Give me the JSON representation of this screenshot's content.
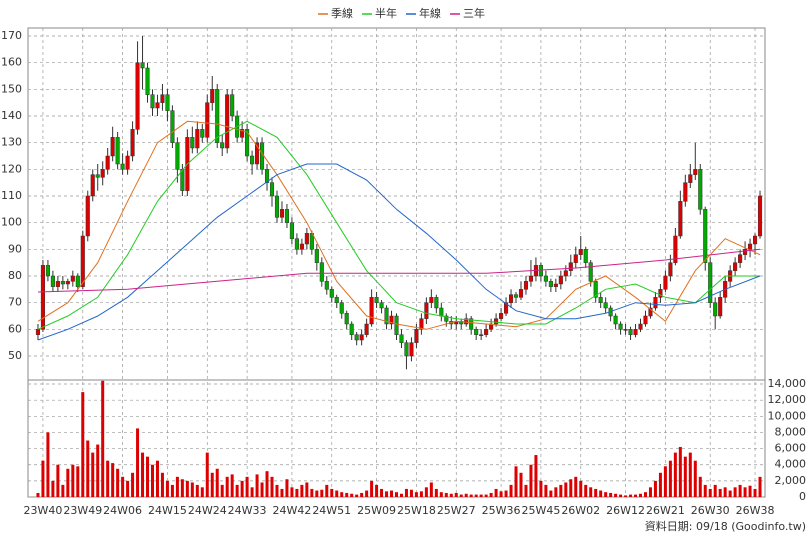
{
  "chart_data": {
    "type": "candlestick",
    "xlim": [
      -2,
      146
    ],
    "xticks": [
      {
        "value": 1,
        "label": "23W40"
      },
      {
        "value": 9,
        "label": "23W49"
      },
      {
        "value": 17,
        "label": "24W06"
      },
      {
        "value": 26,
        "label": "24W15"
      },
      {
        "value": 34,
        "label": "24W24"
      },
      {
        "value": 42,
        "label": "24W33"
      },
      {
        "value": 51,
        "label": "24W42"
      },
      {
        "value": 59,
        "label": "24W51"
      },
      {
        "value": 68,
        "label": "25W09"
      },
      {
        "value": 76,
        "label": "25W18"
      },
      {
        "value": 84,
        "label": "25W27"
      },
      {
        "value": 93,
        "label": "25W36"
      },
      {
        "value": 101,
        "label": "25W45"
      },
      {
        "value": 109,
        "label": "26W02"
      },
      {
        "value": 118,
        "label": "26W12"
      },
      {
        "value": 126,
        "label": "26W21"
      },
      {
        "value": 135,
        "label": "26W30"
      },
      {
        "value": 144,
        "label": "26W38"
      }
    ],
    "ylim": [
      41,
      173
    ],
    "yticks": [
      50,
      60,
      70,
      80,
      90,
      100,
      110,
      120,
      130,
      140,
      150,
      160,
      170
    ],
    "grid": true,
    "up_color": "#dd0000",
    "down_color": "#00aa00",
    "ohlc": [
      [
        58,
        62,
        56,
        60
      ],
      [
        60,
        86,
        59,
        84
      ],
      [
        84,
        86,
        78,
        80
      ],
      [
        80,
        82,
        74,
        76
      ],
      [
        76,
        80,
        74,
        78
      ],
      [
        78,
        80,
        75,
        77
      ],
      [
        77,
        79,
        75,
        78
      ],
      [
        78,
        82,
        76,
        80
      ],
      [
        80,
        81,
        74,
        76
      ],
      [
        76,
        97,
        75,
        95
      ],
      [
        95,
        112,
        93,
        110
      ],
      [
        110,
        120,
        108,
        118
      ],
      [
        118,
        122,
        112,
        117
      ],
      [
        117,
        123,
        114,
        120
      ],
      [
        120,
        128,
        118,
        125
      ],
      [
        125,
        136,
        123,
        132
      ],
      [
        132,
        134,
        120,
        122
      ],
      [
        122,
        126,
        118,
        120
      ],
      [
        120,
        127,
        118,
        125
      ],
      [
        125,
        138,
        123,
        135
      ],
      [
        135,
        168,
        133,
        160
      ],
      [
        160,
        170,
        150,
        158
      ],
      [
        158,
        160,
        145,
        148
      ],
      [
        148,
        150,
        140,
        143
      ],
      [
        143,
        148,
        140,
        145
      ],
      [
        145,
        152,
        142,
        148
      ],
      [
        148,
        150,
        138,
        142
      ],
      [
        142,
        144,
        128,
        130
      ],
      [
        130,
        132,
        115,
        120
      ],
      [
        120,
        122,
        110,
        112
      ],
      [
        112,
        135,
        110,
        132
      ],
      [
        132,
        136,
        126,
        128
      ],
      [
        128,
        138,
        126,
        135
      ],
      [
        135,
        137,
        130,
        132
      ],
      [
        132,
        148,
        130,
        145
      ],
      [
        145,
        155,
        142,
        150
      ],
      [
        150,
        152,
        128,
        130
      ],
      [
        130,
        133,
        125,
        128
      ],
      [
        128,
        150,
        126,
        148
      ],
      [
        148,
        150,
        138,
        140
      ],
      [
        140,
        142,
        130,
        132
      ],
      [
        132,
        138,
        130,
        135
      ],
      [
        135,
        137,
        123,
        125
      ],
      [
        125,
        127,
        118,
        122
      ],
      [
        122,
        132,
        120,
        130
      ],
      [
        130,
        132,
        118,
        120
      ],
      [
        120,
        122,
        112,
        115
      ],
      [
        115,
        117,
        106,
        110
      ],
      [
        110,
        112,
        100,
        102
      ],
      [
        102,
        108,
        100,
        105
      ],
      [
        105,
        107,
        98,
        100
      ],
      [
        100,
        102,
        92,
        94
      ],
      [
        94,
        96,
        88,
        90
      ],
      [
        90,
        94,
        88,
        92
      ],
      [
        92,
        98,
        90,
        96
      ],
      [
        96,
        97,
        88,
        90
      ],
      [
        90,
        92,
        82,
        85
      ],
      [
        85,
        87,
        76,
        78
      ],
      [
        78,
        80,
        73,
        75
      ],
      [
        75,
        76,
        70,
        72
      ],
      [
        72,
        73,
        68,
        70
      ],
      [
        70,
        71,
        64,
        66
      ],
      [
        66,
        67,
        60,
        62
      ],
      [
        62,
        63,
        56,
        58
      ],
      [
        58,
        59,
        54,
        56
      ],
      [
        56,
        60,
        54,
        58
      ],
      [
        58,
        64,
        57,
        62
      ],
      [
        62,
        75,
        61,
        72
      ],
      [
        72,
        74,
        68,
        70
      ],
      [
        70,
        71,
        66,
        68
      ],
      [
        68,
        69,
        60,
        62
      ],
      [
        62,
        67,
        60,
        65
      ],
      [
        65,
        66,
        56,
        58
      ],
      [
        58,
        60,
        53,
        55
      ],
      [
        55,
        56,
        45,
        50
      ],
      [
        50,
        57,
        48,
        55
      ],
      [
        55,
        62,
        53,
        60
      ],
      [
        60,
        66,
        58,
        64
      ],
      [
        64,
        72,
        62,
        70
      ],
      [
        70,
        75,
        68,
        72
      ],
      [
        72,
        73,
        66,
        68
      ],
      [
        68,
        70,
        63,
        65
      ],
      [
        65,
        66,
        61,
        63
      ],
      [
        63,
        65,
        60,
        62
      ],
      [
        62,
        65,
        60,
        63
      ],
      [
        63,
        64,
        60,
        62
      ],
      [
        62,
        66,
        61,
        64
      ],
      [
        64,
        65,
        58,
        60
      ],
      [
        60,
        61,
        56,
        58
      ],
      [
        58,
        60,
        56,
        58
      ],
      [
        58,
        62,
        57,
        60
      ],
      [
        60,
        64,
        59,
        62
      ],
      [
        62,
        66,
        61,
        64
      ],
      [
        64,
        68,
        63,
        66
      ],
      [
        66,
        72,
        65,
        70
      ],
      [
        70,
        75,
        68,
        73
      ],
      [
        73,
        74,
        70,
        72
      ],
      [
        72,
        78,
        71,
        75
      ],
      [
        75,
        80,
        73,
        78
      ],
      [
        78,
        86,
        76,
        80
      ],
      [
        80,
        87,
        78,
        84
      ],
      [
        84,
        85,
        78,
        80
      ],
      [
        80,
        82,
        76,
        78
      ],
      [
        78,
        79,
        74,
        76
      ],
      [
        76,
        79,
        74,
        77
      ],
      [
        77,
        82,
        75,
        80
      ],
      [
        80,
        84,
        78,
        82
      ],
      [
        82,
        88,
        80,
        85
      ],
      [
        85,
        91,
        83,
        88
      ],
      [
        88,
        95,
        86,
        90
      ],
      [
        90,
        91,
        83,
        85
      ],
      [
        85,
        86,
        76,
        78
      ],
      [
        78,
        79,
        70,
        72
      ],
      [
        72,
        74,
        68,
        70
      ],
      [
        70,
        72,
        66,
        68
      ],
      [
        68,
        69,
        63,
        65
      ],
      [
        65,
        66,
        60,
        62
      ],
      [
        62,
        63,
        58,
        60
      ],
      [
        60,
        62,
        58,
        60
      ],
      [
        60,
        61,
        56,
        58
      ],
      [
        58,
        62,
        57,
        60
      ],
      [
        60,
        64,
        59,
        62
      ],
      [
        62,
        67,
        61,
        65
      ],
      [
        65,
        70,
        64,
        68
      ],
      [
        68,
        74,
        67,
        72
      ],
      [
        72,
        77,
        70,
        75
      ],
      [
        75,
        82,
        74,
        80
      ],
      [
        80,
        88,
        78,
        85
      ],
      [
        85,
        98,
        84,
        95
      ],
      [
        95,
        112,
        94,
        108
      ],
      [
        108,
        118,
        106,
        115
      ],
      [
        115,
        122,
        113,
        118
      ],
      [
        118,
        130,
        116,
        120
      ],
      [
        120,
        122,
        103,
        105
      ],
      [
        105,
        106,
        82,
        85
      ],
      [
        85,
        87,
        68,
        70
      ],
      [
        70,
        72,
        60,
        65
      ],
      [
        65,
        74,
        64,
        72
      ],
      [
        72,
        80,
        70,
        78
      ],
      [
        78,
        84,
        76,
        82
      ],
      [
        82,
        87,
        80,
        85
      ],
      [
        85,
        90,
        83,
        88
      ],
      [
        88,
        93,
        86,
        90
      ],
      [
        90,
        94,
        87,
        92
      ],
      [
        92,
        96,
        88,
        95
      ],
      [
        95,
        112,
        94,
        110
      ]
    ],
    "series": [
      {
        "name": "季線",
        "color": "#e07020",
        "x": [
          0,
          6,
          12,
          18,
          24,
          30,
          36,
          42,
          48,
          54,
          60,
          66,
          72,
          78,
          84,
          90,
          96,
          102,
          108,
          114,
          120,
          126,
          132,
          138,
          145
        ],
        "values": [
          63,
          70,
          85,
          108,
          130,
          138,
          137,
          134,
          118,
          100,
          78,
          65,
          62,
          60,
          63,
          62,
          61,
          64,
          75,
          80,
          72,
          63,
          82,
          94,
          88
        ]
      },
      {
        "name": "半年",
        "color": "#22cc22",
        "x": [
          0,
          6,
          12,
          18,
          24,
          30,
          36,
          42,
          48,
          54,
          60,
          66,
          72,
          78,
          84,
          90,
          96,
          102,
          108,
          114,
          120,
          126,
          132,
          138,
          145
        ],
        "values": [
          60,
          65,
          72,
          88,
          108,
          122,
          132,
          138,
          132,
          118,
          100,
          82,
          70,
          66,
          64,
          63,
          62,
          62,
          68,
          75,
          77,
          72,
          70,
          80,
          80
        ]
      },
      {
        "name": "年線",
        "color": "#2266cc",
        "x": [
          0,
          6,
          12,
          18,
          24,
          30,
          36,
          42,
          48,
          54,
          60,
          66,
          72,
          78,
          84,
          90,
          96,
          102,
          108,
          114,
          120,
          126,
          132,
          138,
          145
        ],
        "values": [
          56,
          60,
          65,
          72,
          82,
          92,
          102,
          110,
          118,
          122,
          122,
          116,
          105,
          96,
          86,
          75,
          67,
          64,
          64,
          66,
          70,
          69,
          70,
          75,
          80
        ]
      },
      {
        "name": "三年",
        "color": "#cc2288",
        "x": [
          0,
          18,
          36,
          54,
          72,
          90,
          108,
          126,
          145
        ],
        "values": [
          74,
          75,
          78,
          81,
          81,
          81,
          83,
          86,
          90
        ]
      }
    ],
    "volume": {
      "color": "#dd0000",
      "ylim": [
        0,
        14500
      ],
      "yticks": [
        0,
        {
          "value": 2000,
          "label": "2,000"
        },
        {
          "value": 4000,
          "label": "4,000"
        },
        {
          "value": 6000,
          "label": "6,000"
        },
        {
          "value": 8000,
          "label": "8,000"
        },
        {
          "value": 10000,
          "label": "10,000"
        },
        {
          "value": 12000,
          "label": "12,000"
        },
        {
          "value": 14000,
          "label": "14,000"
        }
      ],
      "values": [
        500,
        4500,
        8000,
        2000,
        4000,
        1500,
        3500,
        4000,
        3800,
        13000,
        7000,
        5500,
        6500,
        14400,
        4500,
        4200,
        3500,
        2500,
        2000,
        3000,
        8500,
        5500,
        5000,
        4000,
        4500,
        3000,
        2000,
        1500,
        2500,
        2200,
        2000,
        1800,
        1500,
        1200,
        5500,
        3000,
        3500,
        1500,
        2500,
        2800,
        1500,
        2000,
        2500,
        1200,
        2800,
        1800,
        3200,
        2500,
        1500,
        1000,
        2200,
        1200,
        1000,
        1500,
        1800,
        1000,
        800,
        900,
        1500,
        1000,
        800,
        600,
        500,
        400,
        300,
        500,
        800,
        2000,
        1500,
        1000,
        700,
        800,
        600,
        400,
        1000,
        900,
        600,
        700,
        1200,
        1800,
        1000,
        600,
        500,
        400,
        500,
        300,
        400,
        300,
        300,
        300,
        300,
        500,
        1000,
        700,
        800,
        1500,
        3800,
        3000,
        1500,
        4000,
        5200,
        2000,
        1500,
        800,
        1200,
        1500,
        1800,
        2200,
        2500,
        2000,
        1500,
        1200,
        1000,
        800,
        600,
        500,
        400,
        300,
        200,
        300,
        300,
        400,
        600,
        1200,
        2000,
        3000,
        3800,
        4500,
        5500,
        6200,
        5000,
        5500,
        4500,
        2500,
        1500,
        1000,
        1500,
        1000,
        1200,
        800,
        1200,
        1500,
        1200,
        1400,
        1000,
        2500
      ]
    },
    "footer": "資料日期: 09/18 (Goodinfo.tw)"
  }
}
